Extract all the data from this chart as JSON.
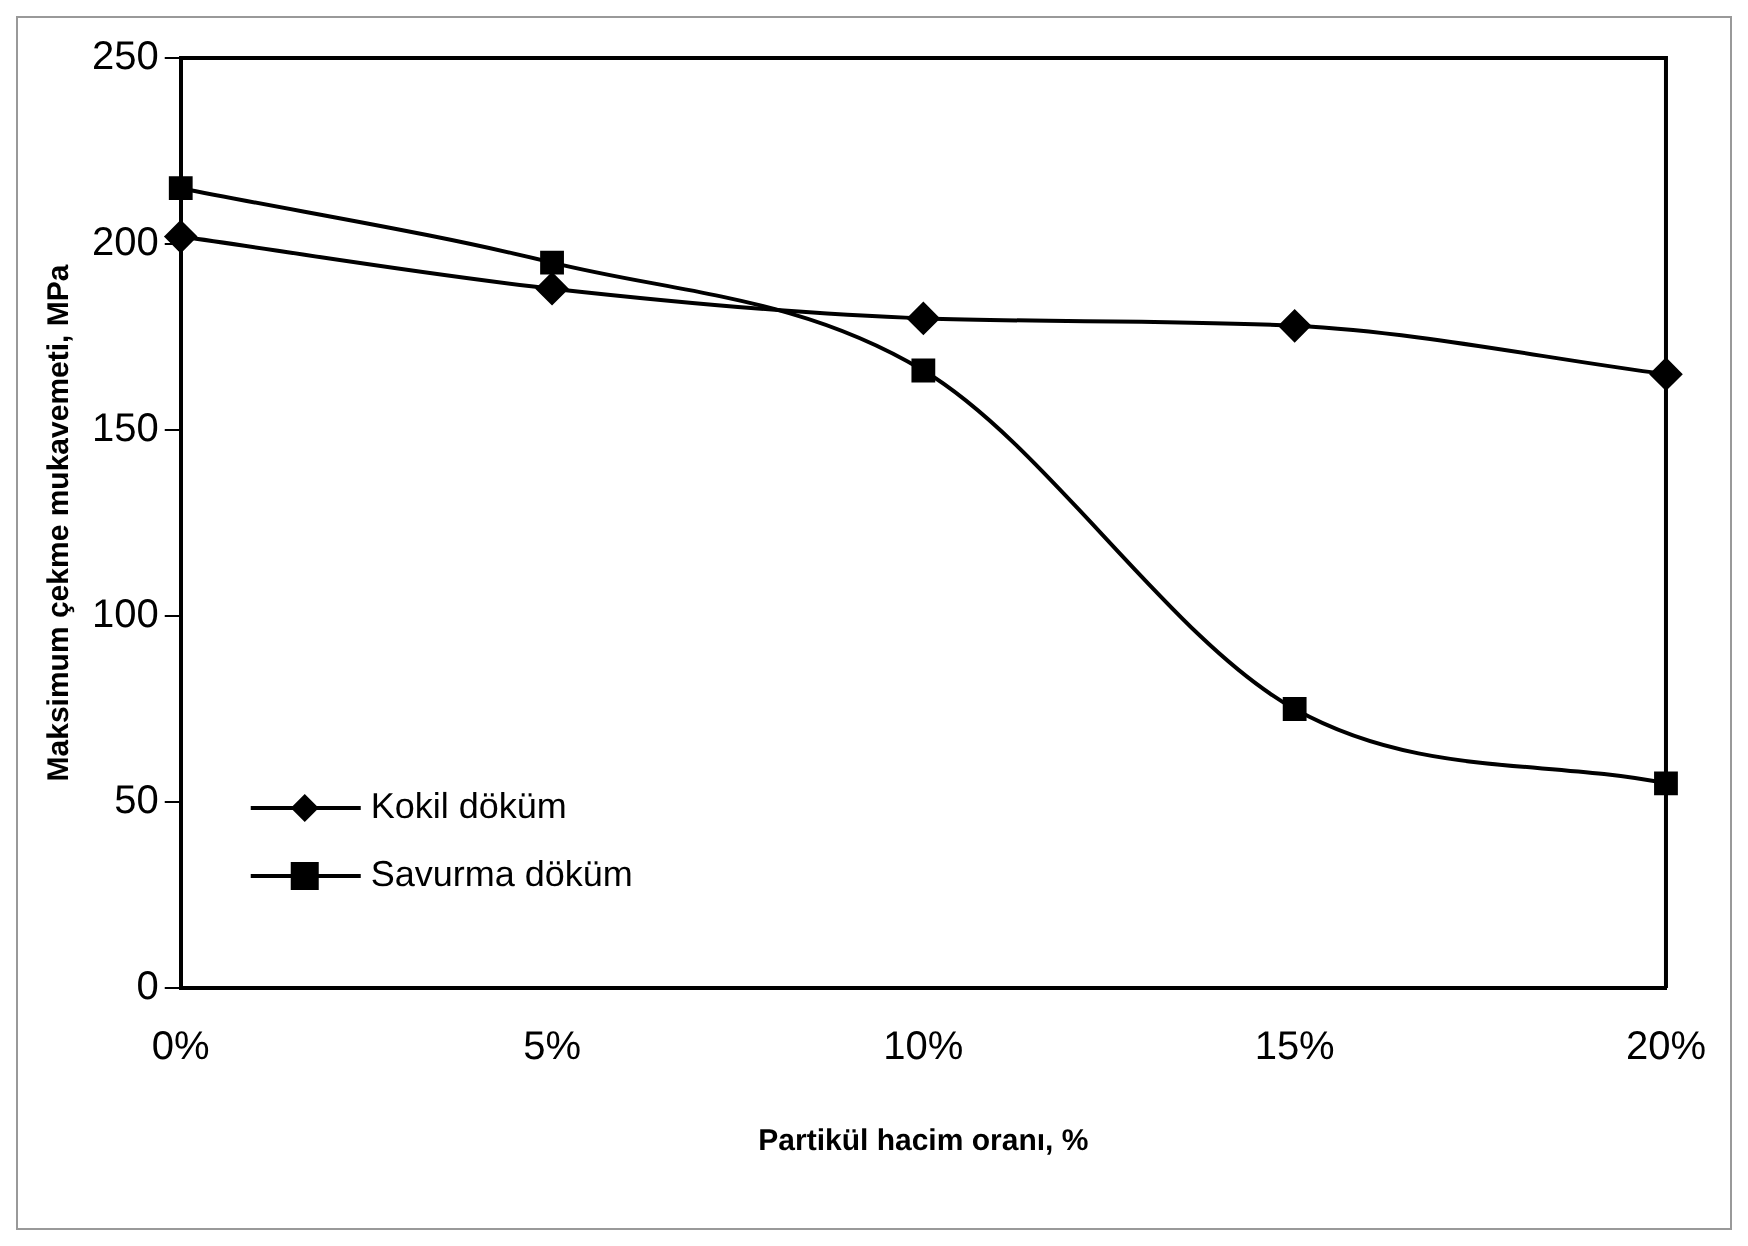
{
  "chart_data": {
    "type": "line",
    "xlabel": "Partikül hacim oranı, %",
    "ylabel": "Maksimum çekme mukavemeti, MPa",
    "categories": [
      "0%",
      "5%",
      "10%",
      "15%",
      "20%"
    ],
    "ylim": [
      0,
      250
    ],
    "yticks": [
      0,
      50,
      100,
      150,
      200,
      250
    ],
    "grid": false,
    "legend": "bottom left",
    "series": [
      {
        "name": "Kokil döküm",
        "color": "#000000",
        "marker": "diamond",
        "values": [
          202,
          188,
          180,
          178,
          165
        ]
      },
      {
        "name": "Savurma döküm",
        "color": "#000000",
        "marker": "square",
        "values": [
          215,
          195,
          166,
          75,
          55
        ]
      }
    ]
  }
}
